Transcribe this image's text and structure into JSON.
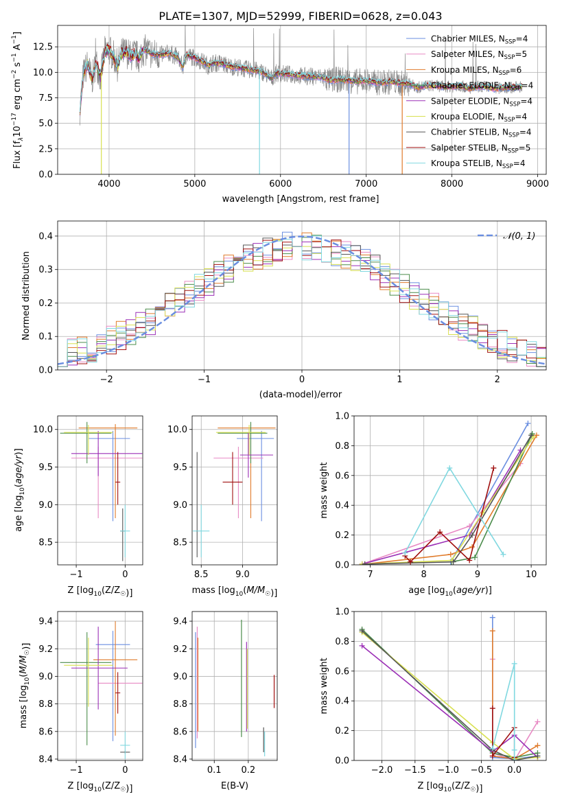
{
  "title": "PLATE=1307, MJD=52999, FIBERID=0628, z=0.043",
  "colors": [
    "#6a8ee0",
    "#e88ac4",
    "#e07a2a",
    "#4a8c4a",
    "#9b2fb6",
    "#d8e050",
    "#555555",
    "#a01010",
    "#80d8e0"
  ],
  "chart_data": [
    {
      "id": "spectrum",
      "type": "line",
      "xlabel": "wavelength [Angstrom, rest frame]",
      "ylabel_parts": [
        "Flux [f",
        "λ",
        "10",
        "−17",
        " erg cm",
        "−2",
        " s",
        "−1",
        " A",
        "−1",
        "]"
      ],
      "xlim": [
        3400,
        9100
      ],
      "ylim": [
        0,
        14.6
      ],
      "xticks": [
        4000,
        5000,
        6000,
        7000,
        8000,
        9000
      ],
      "yticks": [
        0.0,
        2.5,
        5.0,
        7.5,
        10.0,
        12.5
      ],
      "ytick_labels": [
        "0.0",
        "2.5",
        "5.0",
        "7.5",
        "10.0",
        "12.5"
      ],
      "data_color": "#888888",
      "data_points": [
        [
          3660,
          6.4
        ],
        [
          3700,
          9.8
        ],
        [
          3750,
          10.8
        ],
        [
          3800,
          9.2
        ],
        [
          3850,
          11.0
        ],
        [
          3900,
          9.5
        ],
        [
          3950,
          12.0
        ],
        [
          4000,
          12.2
        ],
        [
          4050,
          11.6
        ],
        [
          4100,
          10.6
        ],
        [
          4150,
          11.9
        ],
        [
          4200,
          12.0
        ],
        [
          4250,
          11.6
        ],
        [
          4300,
          11.8
        ],
        [
          4350,
          11.4
        ],
        [
          4400,
          12.2
        ],
        [
          4450,
          12.1
        ],
        [
          4500,
          11.8
        ],
        [
          4600,
          11.7
        ],
        [
          4700,
          11.9
        ],
        [
          4800,
          11.5
        ],
        [
          4860,
          10.5
        ],
        [
          4900,
          11.7
        ],
        [
          5000,
          11.4
        ],
        [
          5100,
          11.0
        ],
        [
          5170,
          10.6
        ],
        [
          5200,
          10.9
        ],
        [
          5300,
          10.9
        ],
        [
          5400,
          10.6
        ],
        [
          5500,
          10.5
        ],
        [
          5600,
          10.3
        ],
        [
          5700,
          10.2
        ],
        [
          5800,
          10.0
        ],
        [
          5890,
          9.4
        ],
        [
          5950,
          9.9
        ],
        [
          6100,
          9.8
        ],
        [
          6200,
          9.7
        ],
        [
          6300,
          9.6
        ],
        [
          6400,
          9.6
        ],
        [
          6500,
          9.5
        ],
        [
          6563,
          9.2
        ],
        [
          6700,
          9.3
        ],
        [
          6800,
          9.2
        ],
        [
          6900,
          9.1
        ],
        [
          7000,
          9.2
        ],
        [
          7100,
          9.0
        ],
        [
          7200,
          9.0
        ],
        [
          7300,
          9.1
        ],
        [
          7400,
          8.9
        ],
        [
          7500,
          8.9
        ],
        [
          7600,
          8.5
        ],
        [
          7700,
          8.7
        ],
        [
          7800,
          8.7
        ],
        [
          7900,
          8.6
        ],
        [
          8000,
          8.6
        ],
        [
          8100,
          8.7
        ],
        [
          8200,
          8.4
        ],
        [
          8300,
          8.6
        ],
        [
          8400,
          8.6
        ],
        [
          8500,
          8.4
        ],
        [
          8600,
          8.5
        ],
        [
          8700,
          8.5
        ],
        [
          8800,
          8.6
        ]
      ],
      "legend": [
        {
          "label": "Chabrier MILES, N",
          "sub": "SSP",
          "eq": "=4"
        },
        {
          "label": "Salpeter MILES, N",
          "sub": "SSP",
          "eq": "=5"
        },
        {
          "label": "Kroupa MILES, N",
          "sub": "SSP",
          "eq": "=6"
        },
        {
          "label": "Chabrier ELODIE, N",
          "sub": "SSP",
          "eq": "=4"
        },
        {
          "label": "Salpeter ELODIE, N",
          "sub": "SSP",
          "eq": "=4"
        },
        {
          "label": "Kroupa ELODIE, N",
          "sub": "SSP",
          "eq": "=4"
        },
        {
          "label": "Chabrier STELIB, N",
          "sub": "SSP",
          "eq": "=4"
        },
        {
          "label": "Salpeter STELIB, N",
          "sub": "SSP",
          "eq": "=5"
        },
        {
          "label": "Kroupa STELIB, N",
          "sub": "SSP",
          "eq": "=4"
        }
      ],
      "legend_placement": "top-right"
    },
    {
      "id": "residuals",
      "type": "line",
      "xlabel": "(data-model)/error",
      "ylabel": "Normed distribution",
      "xlim": [
        -2.5,
        2.5
      ],
      "ylim": [
        0,
        0.445
      ],
      "xticks": [
        -2,
        -1,
        0,
        1,
        2
      ],
      "xtick_labels": [
        "−2",
        "−1",
        "0",
        "1",
        "2"
      ],
      "yticks": [
        0.0,
        0.1,
        0.2,
        0.3,
        0.4
      ],
      "ytick_labels": [
        "0.0",
        "0.1",
        "0.2",
        "0.3",
        "0.4"
      ],
      "grid": true,
      "bin_width": 0.1,
      "legend": "𝒩(0, 1)",
      "legend_placement": "top-right"
    },
    {
      "id": "age_vs_Z",
      "type": "scatter",
      "xlabel": "Z [log10(Z/Z☉)]",
      "ylabel": "age [log10(age/yr)]",
      "xlim": [
        -1.38,
        0.36
      ],
      "ylim": [
        8.2,
        10.18
      ],
      "xticks": [
        -1,
        0
      ],
      "xtick_labels": [
        "−1",
        "0"
      ],
      "yticks": [
        8.5,
        9.0,
        9.5,
        10.0
      ],
      "ytick_labels": [
        "8.5",
        "9.0",
        "9.5",
        "10.0"
      ],
      "points": [
        {
          "x": -0.25,
          "y": 9.88,
          "xerr": [
            0.5,
            0.35
          ],
          "yerr": [
            1.1,
            0.1
          ]
        },
        {
          "x": -0.55,
          "y": 9.62,
          "xerr": [
            0.55,
            0.9
          ],
          "yerr": [
            0.8,
            0.15
          ]
        },
        {
          "x": -0.2,
          "y": 10.02,
          "xerr": [
            0.75,
            0.45
          ],
          "yerr": [
            1.2,
            0.05
          ]
        },
        {
          "x": -0.78,
          "y": 9.95,
          "xerr": [
            0.55,
            0.5
          ],
          "yerr": [
            0.4,
            0.15
          ]
        },
        {
          "x": -0.55,
          "y": 9.68,
          "xerr": [
            0.55,
            0.9
          ],
          "yerr": [
            0.3,
            0.3
          ]
        },
        {
          "x": -0.75,
          "y": 9.96,
          "xerr": [
            0.5,
            0.5
          ],
          "yerr": [
            0.3,
            0.1
          ]
        },
        {
          "x": -0.05,
          "y": 8.65,
          "xerr": [
            0.05,
            0.05
          ],
          "yerr": [
            0.4,
            0.3
          ]
        },
        {
          "x": -0.15,
          "y": 9.3,
          "xerr": [
            0.05,
            0.05
          ],
          "yerr": [
            0.3,
            0.4
          ]
        },
        {
          "x": 0.0,
          "y": 8.65,
          "xerr": [
            0.1,
            0.1
          ],
          "yerr": [
            0.35,
            0.35
          ]
        }
      ]
    },
    {
      "id": "age_vs_mass",
      "type": "scatter",
      "xlabel": "mass [log10(M/M☉)]",
      "ylabel": "",
      "xlim": [
        8.39,
        9.42
      ],
      "ylim": [
        8.2,
        10.18
      ],
      "xticks": [
        8.5,
        9.0
      ],
      "xtick_labels": [
        "8.5",
        "9.0"
      ],
      "yticks": [
        8.5,
        9.0,
        9.5,
        10.0
      ],
      "ytick_labels": [
        "8.5",
        "9.0",
        "9.5",
        "10.0"
      ],
      "points": [
        {
          "x": 9.23,
          "y": 9.88,
          "xerr": [
            0.3,
            0.15
          ],
          "yerr": [
            1.1,
            0.1
          ]
        },
        {
          "x": 8.95,
          "y": 9.62,
          "xerr": [
            0.3,
            0.3
          ],
          "yerr": [
            0.8,
            0.15
          ]
        },
        {
          "x": 9.1,
          "y": 10.02,
          "xerr": [
            0.4,
            0.3
          ],
          "yerr": [
            1.2,
            0.05
          ]
        },
        {
          "x": 9.1,
          "y": 9.95,
          "xerr": [
            0.4,
            0.2
          ],
          "yerr": [
            0.4,
            0.15
          ]
        },
        {
          "x": 9.07,
          "y": 9.66,
          "xerr": [
            0.1,
            0.3
          ],
          "yerr": [
            0.3,
            0.3
          ]
        },
        {
          "x": 9.08,
          "y": 9.96,
          "xerr": [
            0.4,
            0.2
          ],
          "yerr": [
            0.3,
            0.1
          ]
        },
        {
          "x": 8.45,
          "y": 8.65,
          "xerr": [
            0.01,
            0.01
          ],
          "yerr": [
            0.35,
            1.05
          ]
        },
        {
          "x": 8.88,
          "y": 9.3,
          "xerr": [
            0.12,
            0.12
          ],
          "yerr": [
            0.3,
            0.4
          ]
        },
        {
          "x": 8.5,
          "y": 8.65,
          "xerr": [
            0.1,
            0.1
          ],
          "yerr": [
            0.35,
            0.35
          ]
        }
      ]
    },
    {
      "id": "massweight_vs_age",
      "type": "line",
      "xlabel": "age [log10(age/yr)]",
      "ylabel": "mass weight",
      "xlim": [
        6.7,
        10.28
      ],
      "ylim": [
        0,
        1.0
      ],
      "xticks": [
        7,
        8,
        9,
        10
      ],
      "xtick_labels": [
        "7",
        "8",
        "9",
        "10"
      ],
      "yticks": [
        0.0,
        0.2,
        0.4,
        0.6,
        0.8,
        1.0
      ],
      "ytick_labels": [
        "0.0",
        "0.2",
        "0.4",
        "0.6",
        "0.8",
        "1.0"
      ],
      "grid": true,
      "series": [
        {
          "x": [
            8.5,
            8.52,
            9.94
          ],
          "y": [
            0.02,
            0.03,
            0.95
          ]
        },
        {
          "x": [
            6.85,
            8.85,
            9.8
          ],
          "y": [
            0.005,
            0.26,
            0.68
          ]
        },
        {
          "x": [
            6.9,
            8.5,
            8.9,
            10.1
          ],
          "y": [
            0.005,
            0.07,
            0.12,
            0.87
          ]
        },
        {
          "x": [
            8.52,
            8.95,
            10.02
          ],
          "y": [
            0.02,
            0.05,
            0.88
          ]
        },
        {
          "x": [
            6.85,
            8.85,
            9.8
          ],
          "y": [
            0.005,
            0.2,
            0.77
          ]
        },
        {
          "x": [
            6.85,
            8.52,
            9.1,
            10.04
          ],
          "y": [
            0.005,
            0.03,
            0.35,
            0.86
          ]
        },
        {
          "x": [
            6.9,
            8.55,
            8.9,
            10.0
          ],
          "y": [
            0.005,
            0.02,
            0.2,
            0.87
          ]
        },
        {
          "x": [
            7.65,
            7.75,
            8.3,
            8.85,
            9.3
          ],
          "y": [
            0.06,
            0.02,
            0.22,
            0.03,
            0.65
          ]
        },
        {
          "x": [
            7.65,
            8.48,
            9.48
          ],
          "y": [
            0.08,
            0.65,
            0.07
          ]
        }
      ]
    },
    {
      "id": "mass_vs_Z",
      "type": "scatter",
      "xlabel": "Z [log10(Z/Z☉)]",
      "ylabel": "mass [log10(M/M☉)]",
      "xlim": [
        -1.38,
        0.36
      ],
      "ylim": [
        8.39,
        9.47
      ],
      "xticks": [
        -1,
        0
      ],
      "xtick_labels": [
        "−1",
        "0"
      ],
      "yticks": [
        8.4,
        8.6,
        8.8,
        9.0,
        9.2,
        9.4
      ],
      "ytick_labels": [
        "8.4",
        "8.6",
        "8.8",
        "9.0",
        "9.2",
        "9.4"
      ],
      "points": [
        {
          "x": -0.25,
          "y": 9.23,
          "xerr": [
            0.35,
            0.35
          ],
          "yerr": [
            0.7,
            0.1
          ]
        },
        {
          "x": -0.55,
          "y": 8.95,
          "xerr": [
            0.0,
            0.9
          ],
          "yerr": [
            0.0,
            0.0
          ]
        },
        {
          "x": -0.2,
          "y": 9.12,
          "xerr": [
            0.45,
            0.45
          ],
          "yerr": [
            0.55,
            0.28
          ]
        },
        {
          "x": -0.78,
          "y": 9.1,
          "xerr": [
            0.55,
            0.5
          ],
          "yerr": [
            0.6,
            0.22
          ]
        },
        {
          "x": -0.55,
          "y": 9.06,
          "xerr": [
            0.55,
            0.6
          ],
          "yerr": [
            0.3,
            0.3
          ]
        },
        {
          "x": -0.75,
          "y": 9.08,
          "xerr": [
            0.5,
            0.5
          ],
          "yerr": [
            0.3,
            0.2
          ]
        },
        {
          "x": 0.0,
          "y": 8.45,
          "xerr": [
            0.1,
            0.1
          ],
          "yerr": [
            0.01,
            0.01
          ]
        },
        {
          "x": -0.15,
          "y": 8.88,
          "xerr": [
            0.05,
            0.05
          ],
          "yerr": [
            0.15,
            0.15
          ]
        },
        {
          "x": 0.0,
          "y": 8.5,
          "xerr": [
            0.1,
            0.1
          ],
          "yerr": [
            0.1,
            0.1
          ]
        }
      ]
    },
    {
      "id": "ebv",
      "type": "scatter",
      "xlabel": "E(B-V)",
      "ylabel": "",
      "xlim": [
        0.035,
        0.285
      ],
      "ylim": [
        8.39,
        9.47
      ],
      "xticks": [
        0.1,
        0.2
      ],
      "xtick_labels": [
        "0.1",
        "0.2"
      ],
      "yticks": [
        8.4,
        8.6,
        8.8,
        9.0,
        9.2,
        9.4
      ],
      "ytick_labels": [
        "8.4",
        "8.6",
        "8.8",
        "9.0",
        "9.2",
        "9.4"
      ],
      "bars": [
        {
          "x": 0.045,
          "y0": 8.48,
          "y1": 9.32
        },
        {
          "x": 0.05,
          "y0": 8.55,
          "y1": 9.36
        },
        {
          "x": 0.052,
          "y0": 8.6,
          "y1": 9.28
        },
        {
          "x": 0.18,
          "y0": 8.56,
          "y1": 9.41
        },
        {
          "x": 0.195,
          "y0": 8.6,
          "y1": 9.25
        },
        {
          "x": 0.197,
          "y0": 8.62,
          "y1": 9.2
        },
        {
          "x": 0.245,
          "y0": 8.45,
          "y1": 8.63
        },
        {
          "x": 0.276,
          "y0": 8.77,
          "y1": 9.01
        },
        {
          "x": 0.248,
          "y0": 8.42,
          "y1": 8.6
        }
      ]
    },
    {
      "id": "massweight_vs_Z",
      "type": "line",
      "xlabel": "Z [log10(Z/Z☉)]",
      "ylabel": "mass weight",
      "xlim": [
        -2.42,
        0.48
      ],
      "ylim": [
        0,
        1.0
      ],
      "xticks": [
        -2.0,
        -1.5,
        -1.0,
        -0.5,
        0.0
      ],
      "xtick_labels": [
        "−2.0",
        "−1.5",
        "−1.0",
        "−0.5",
        "0.0"
      ],
      "yticks": [
        0.0,
        0.2,
        0.4,
        0.6,
        0.8,
        1.0
      ],
      "ytick_labels": [
        "0.0",
        "0.2",
        "0.4",
        "0.6",
        "0.8",
        "1.0"
      ],
      "grid": true,
      "series": [
        {
          "x": [
            -0.33,
            -0.33,
            0.0,
            0.35
          ],
          "y": [
            0.96,
            0.02,
            0.01,
            0.03
          ]
        },
        {
          "x": [
            -0.33,
            -0.33,
            0.0,
            0.35
          ],
          "y": [
            0.68,
            0.05,
            0.0,
            0.26
          ]
        },
        {
          "x": [
            -0.33,
            -0.33,
            0.0,
            0.35
          ],
          "y": [
            0.87,
            0.03,
            0.01,
            0.1
          ]
        },
        {
          "x": [
            -2.3,
            -0.33,
            0.0,
            0.35
          ],
          "y": [
            0.88,
            0.05,
            0.02,
            0.05
          ]
        },
        {
          "x": [
            -2.3,
            -0.33,
            0.0,
            0.35
          ],
          "y": [
            0.77,
            0.06,
            0.17,
            0.02
          ]
        },
        {
          "x": [
            -2.3,
            -0.33,
            0.0,
            0.35
          ],
          "y": [
            0.86,
            0.12,
            0.01,
            0.02
          ]
        },
        {
          "x": [
            -2.3,
            -0.33,
            0.0,
            0.35
          ],
          "y": [
            0.87,
            0.07,
            0.0,
            0.03
          ]
        },
        {
          "x": [
            -0.33,
            -0.33,
            0.0,
            0.0
          ],
          "y": [
            0.35,
            0.03,
            0.22,
            0.02
          ]
        },
        {
          "x": [
            -0.33,
            0.0,
            0.0,
            0.0
          ],
          "y": [
            0.08,
            0.65,
            0.07,
            0.0
          ]
        }
      ]
    }
  ]
}
